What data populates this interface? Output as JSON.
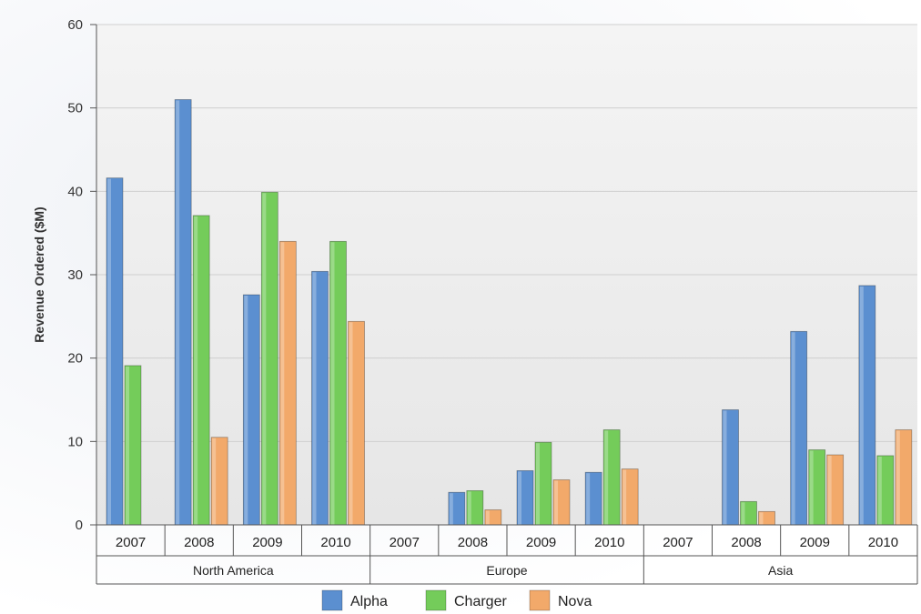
{
  "chart_data": {
    "type": "bar",
    "title": "",
    "xlabel": "",
    "ylabel": "Revenue Ordered ($M)",
    "ylim": [
      0,
      60
    ],
    "yticks": [
      0,
      10,
      20,
      30,
      40,
      50,
      60
    ],
    "grid": true,
    "legend_position": "bottom",
    "groups": [
      {
        "name": "North America",
        "categories": [
          "2007",
          "2008",
          "2009",
          "2010"
        ]
      },
      {
        "name": "Europe",
        "categories": [
          "2007",
          "2008",
          "2009",
          "2010"
        ]
      },
      {
        "name": "Asia",
        "categories": [
          "2007",
          "2008",
          "2009",
          "2010"
        ]
      }
    ],
    "series": [
      {
        "name": "Alpha",
        "color": "#5b8fd0",
        "values": [
          41.6,
          51.0,
          27.6,
          30.4,
          0,
          3.9,
          6.5,
          6.3,
          0,
          13.8,
          23.2,
          28.7
        ]
      },
      {
        "name": "Charger",
        "color": "#74cc5a",
        "values": [
          19.1,
          37.1,
          39.9,
          34.0,
          0,
          4.1,
          9.9,
          11.4,
          0,
          2.8,
          9.0,
          8.3
        ]
      },
      {
        "name": "Nova",
        "color": "#f2a96a",
        "values": [
          0,
          10.5,
          34.0,
          24.4,
          0,
          1.8,
          5.4,
          6.7,
          0,
          1.6,
          8.4,
          11.4
        ]
      }
    ]
  }
}
